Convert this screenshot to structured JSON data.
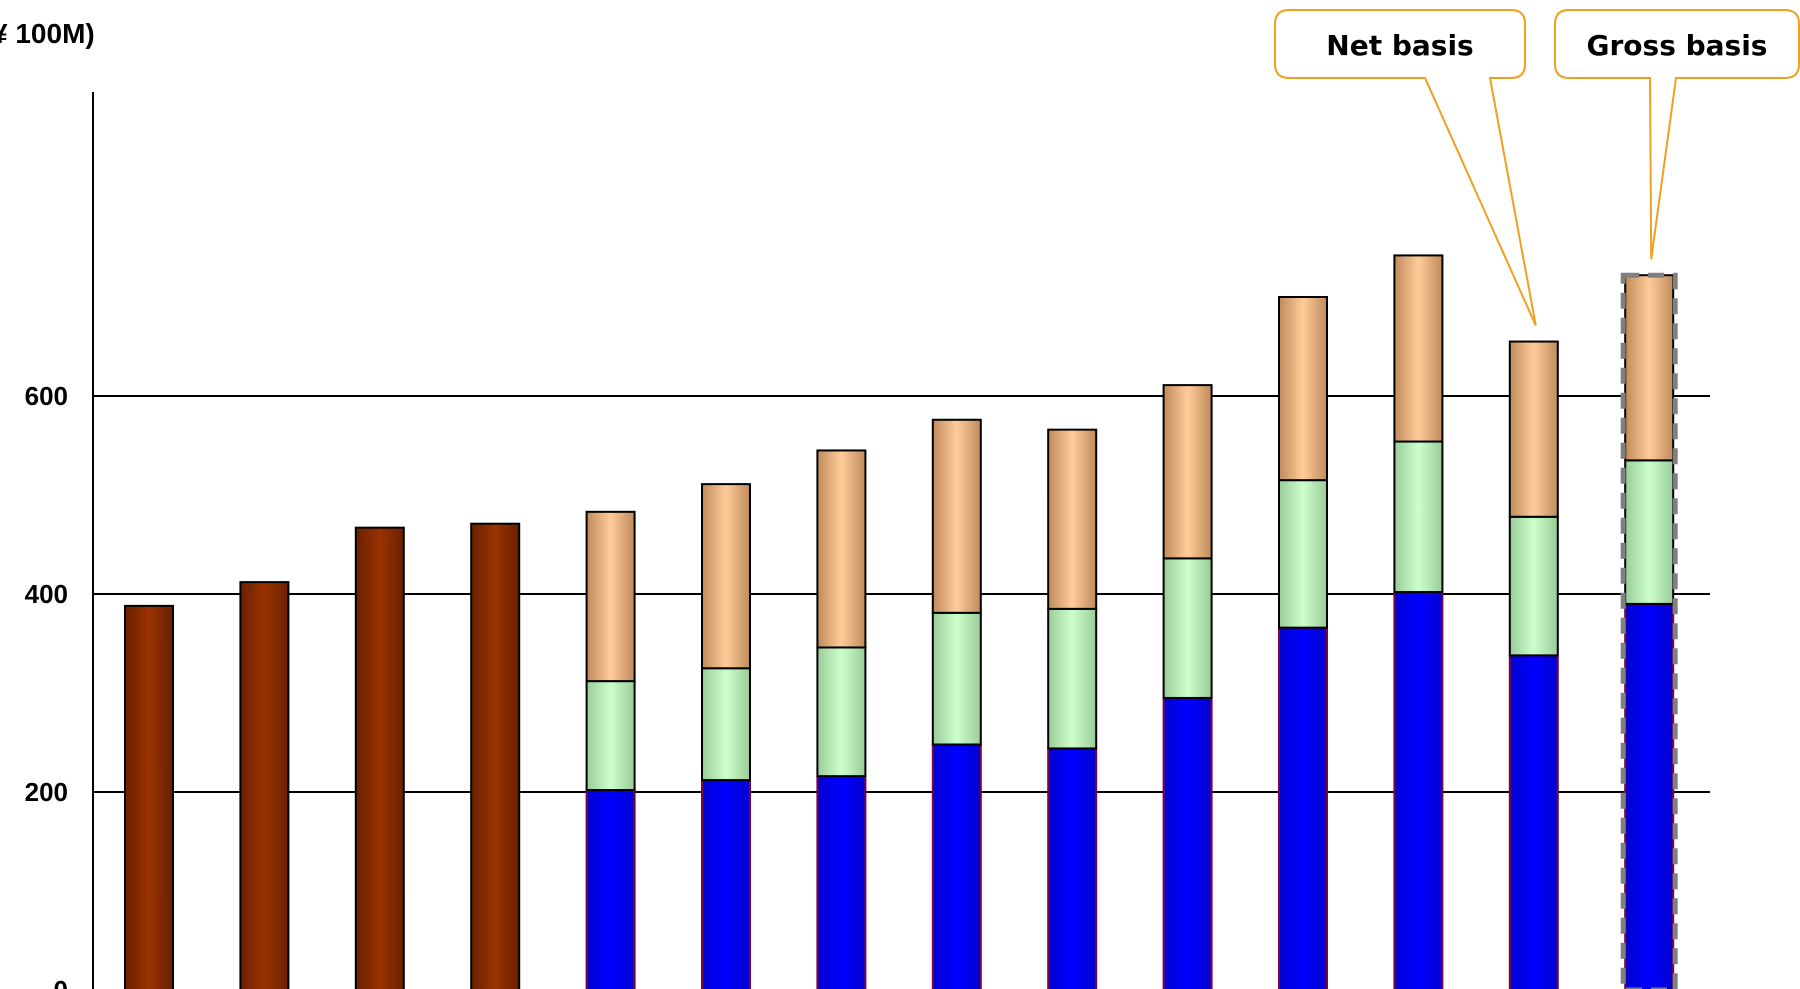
{
  "chart_data": {
    "type": "bar",
    "stacked": true,
    "title": "",
    "ylabel": "¥ 100M)",
    "xlabel": "",
    "ylim": [
      0,
      800
    ],
    "yticks": [
      0,
      200,
      400,
      600
    ],
    "grid": true,
    "legend": "none",
    "colors": {
      "total": "#993300",
      "base": "#0000ff",
      "middle": "#ccffcc",
      "top": "#ffcc99"
    },
    "bars": [
      {
        "total": 388
      },
      {
        "total": 412
      },
      {
        "total": 467
      },
      {
        "total": 471
      },
      {
        "base": 202,
        "middle": 110,
        "top": 171
      },
      {
        "base": 212,
        "middle": 113,
        "top": 186
      },
      {
        "base": 216,
        "middle": 130,
        "top": 199
      },
      {
        "base": 248,
        "middle": 133,
        "top": 195
      },
      {
        "base": 244,
        "middle": 141,
        "top": 181
      },
      {
        "base": 295,
        "middle": 141,
        "top": 175
      },
      {
        "base": 366,
        "middle": 149,
        "top": 185
      },
      {
        "base": 402,
        "middle": 152,
        "top": 188
      },
      {
        "base": 338,
        "middle": 140,
        "top": 177
      },
      {
        "base": 390,
        "middle": 145,
        "top": 187,
        "dashed": true
      }
    ],
    "annotations": [
      {
        "text": "Net basis",
        "target_bar": 12
      },
      {
        "text": "Gross basis",
        "target_bar": 13
      }
    ]
  }
}
